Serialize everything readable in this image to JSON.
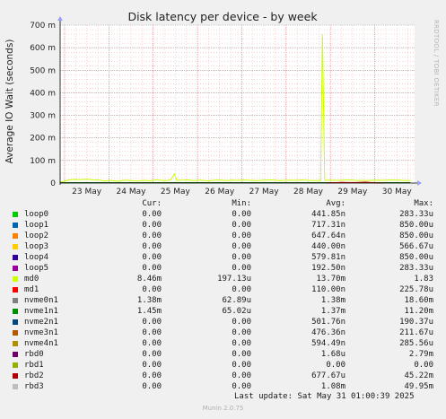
{
  "chart_data": {
    "type": "line",
    "title": "Disk latency per device - by week",
    "ylabel": "Average IO Wait (seconds)",
    "side_label": "RRDTOOL / TOBI OETIKER",
    "ylim": [
      0,
      0.7
    ],
    "yticks": [
      {
        "value": 0,
        "label": "0"
      },
      {
        "value": 0.1,
        "label": "100 m"
      },
      {
        "value": 0.2,
        "label": "200 m"
      },
      {
        "value": 0.3,
        "label": "300 m"
      },
      {
        "value": 0.4,
        "label": "400 m"
      },
      {
        "value": 0.5,
        "label": "500 m"
      },
      {
        "value": 0.6,
        "label": "600 m"
      },
      {
        "value": 0.7,
        "label": "700 m"
      }
    ],
    "xlim": [
      0,
      8
    ],
    "xticks": [
      {
        "value": 0.6,
        "label": "23 May"
      },
      {
        "value": 1.6,
        "label": "24 May"
      },
      {
        "value": 2.6,
        "label": "25 May"
      },
      {
        "value": 3.6,
        "label": "26 May"
      },
      {
        "value": 4.6,
        "label": "27 May"
      },
      {
        "value": 5.6,
        "label": "28 May"
      },
      {
        "value": 6.6,
        "label": "29 May"
      },
      {
        "value": 7.6,
        "label": "30 May"
      }
    ],
    "grid": true,
    "series": [
      {
        "name": "md0",
        "color": "#ccff00",
        "points": [
          [
            0.0,
            0.005
          ],
          [
            0.1,
            0.009
          ],
          [
            0.2,
            0.014
          ],
          [
            0.3,
            0.016
          ],
          [
            0.45,
            0.015
          ],
          [
            0.6,
            0.017
          ],
          [
            0.75,
            0.014
          ],
          [
            0.9,
            0.013
          ],
          [
            1.0,
            0.009
          ],
          [
            1.15,
            0.012
          ],
          [
            1.3,
            0.008
          ],
          [
            1.45,
            0.013
          ],
          [
            1.6,
            0.011
          ],
          [
            1.75,
            0.009
          ],
          [
            1.9,
            0.012
          ],
          [
            2.0,
            0.01
          ],
          [
            2.15,
            0.014
          ],
          [
            2.3,
            0.012
          ],
          [
            2.4,
            0.011
          ],
          [
            2.5,
            0.015
          ],
          [
            2.58,
            0.04
          ],
          [
            2.63,
            0.012
          ],
          [
            2.75,
            0.013
          ],
          [
            2.9,
            0.014
          ],
          [
            3.0,
            0.011
          ],
          [
            3.15,
            0.013
          ],
          [
            3.3,
            0.01
          ],
          [
            3.45,
            0.012
          ],
          [
            3.6,
            0.014
          ],
          [
            3.75,
            0.011
          ],
          [
            3.9,
            0.013
          ],
          [
            4.0,
            0.012
          ],
          [
            4.15,
            0.014
          ],
          [
            4.3,
            0.012
          ],
          [
            4.45,
            0.011
          ],
          [
            4.6,
            0.013
          ],
          [
            4.75,
            0.014
          ],
          [
            4.9,
            0.012
          ],
          [
            5.0,
            0.011
          ],
          [
            5.15,
            0.013
          ],
          [
            5.3,
            0.012
          ],
          [
            5.45,
            0.014
          ],
          [
            5.6,
            0.012
          ],
          [
            5.75,
            0.011
          ],
          [
            5.88,
            0.012
          ],
          [
            5.92,
            0.66
          ],
          [
            5.97,
            0.012
          ],
          [
            6.1,
            0.013
          ],
          [
            6.3,
            0.012
          ],
          [
            6.5,
            0.014
          ],
          [
            6.7,
            0.012
          ],
          [
            6.9,
            0.011
          ],
          [
            7.1,
            0.013
          ],
          [
            7.3,
            0.012
          ],
          [
            7.5,
            0.014
          ],
          [
            7.7,
            0.012
          ],
          [
            7.9,
            0.011
          ]
        ]
      },
      {
        "name": "nvme0n1",
        "color": "#7f7f7f",
        "points": [
          [
            0.0,
            0.002
          ],
          [
            1.0,
            0.002
          ],
          [
            2.0,
            0.002
          ],
          [
            3.0,
            0.002
          ],
          [
            4.0,
            0.002
          ],
          [
            5.0,
            0.002
          ],
          [
            6.0,
            0.002
          ],
          [
            7.0,
            0.002
          ],
          [
            7.9,
            0.002
          ]
        ]
      },
      {
        "name": "nvme1n1",
        "color": "#006600",
        "points": [
          [
            0.0,
            0.0015
          ],
          [
            1.0,
            0.0015
          ],
          [
            2.0,
            0.0015
          ],
          [
            3.0,
            0.0015
          ],
          [
            4.0,
            0.0015
          ],
          [
            5.0,
            0.0015
          ],
          [
            6.0,
            0.0015
          ],
          [
            7.0,
            0.0015
          ],
          [
            7.9,
            0.0015
          ]
        ]
      },
      {
        "name": "rbd2",
        "color": "#cc0000",
        "points": [
          [
            6.0,
            0.0
          ],
          [
            6.35,
            0.003
          ],
          [
            6.6,
            0.002
          ],
          [
            6.9,
            0.004
          ],
          [
            7.1,
            0.001
          ],
          [
            7.3,
            0.0
          ]
        ]
      }
    ]
  },
  "legend": {
    "headers": {
      "cur": "Cur:",
      "min": "Min:",
      "avg": "Avg:",
      "max": "Max:"
    },
    "rows": [
      {
        "name": "loop0",
        "color": "#00cc00",
        "cur": "0.00",
        "min": "0.00",
        "avg": "441.85n",
        "max": "283.33u"
      },
      {
        "name": "loop1",
        "color": "#0066b3",
        "cur": "0.00",
        "min": "0.00",
        "avg": "717.31n",
        "max": "850.00u"
      },
      {
        "name": "loop2",
        "color": "#ff8000",
        "cur": "0.00",
        "min": "0.00",
        "avg": "647.64n",
        "max": "850.00u"
      },
      {
        "name": "loop3",
        "color": "#ffcc00",
        "cur": "0.00",
        "min": "0.00",
        "avg": "440.00n",
        "max": "566.67u"
      },
      {
        "name": "loop4",
        "color": "#330099",
        "cur": "0.00",
        "min": "0.00",
        "avg": "579.81n",
        "max": "850.00u"
      },
      {
        "name": "loop5",
        "color": "#990099",
        "cur": "0.00",
        "min": "0.00",
        "avg": "192.50n",
        "max": "283.33u"
      },
      {
        "name": "md0",
        "color": "#ccff00",
        "cur": "8.46m",
        "min": "197.13u",
        "avg": "13.70m",
        "max": "1.83"
      },
      {
        "name": "md1",
        "color": "#ff0000",
        "cur": "0.00",
        "min": "0.00",
        "avg": "110.00n",
        "max": "225.78u"
      },
      {
        "name": "nvme0n1",
        "color": "#808080",
        "cur": "1.38m",
        "min": "62.89u",
        "avg": "1.38m",
        "max": "18.60m"
      },
      {
        "name": "nvme1n1",
        "color": "#008f00",
        "cur": "1.45m",
        "min": "65.02u",
        "avg": "1.37m",
        "max": "11.20m"
      },
      {
        "name": "nvme2n1",
        "color": "#00487d",
        "cur": "0.00",
        "min": "0.00",
        "avg": "501.76n",
        "max": "190.37u"
      },
      {
        "name": "nvme3n1",
        "color": "#b35a00",
        "cur": "0.00",
        "min": "0.00",
        "avg": "476.36n",
        "max": "211.67u"
      },
      {
        "name": "nvme4n1",
        "color": "#b38f00",
        "cur": "0.00",
        "min": "0.00",
        "avg": "594.49n",
        "max": "285.56u"
      },
      {
        "name": "rbd0",
        "color": "#6b006b",
        "cur": "0.00",
        "min": "0.00",
        "avg": "1.68u",
        "max": "2.79m"
      },
      {
        "name": "rbd1",
        "color": "#8fb300",
        "cur": "0.00",
        "min": "0.00",
        "avg": "0.00",
        "max": "0.00"
      },
      {
        "name": "rbd2",
        "color": "#b30000",
        "cur": "0.00",
        "min": "0.00",
        "avg": "677.67u",
        "max": "45.22m"
      },
      {
        "name": "rbd3",
        "color": "#bebebe",
        "cur": "0.00",
        "min": "0.00",
        "avg": "1.08m",
        "max": "49.95m"
      }
    ]
  },
  "footer": {
    "last_update": "Last update: Sat May 31 01:00:39 2025",
    "version": "Munin 2.0.75"
  }
}
